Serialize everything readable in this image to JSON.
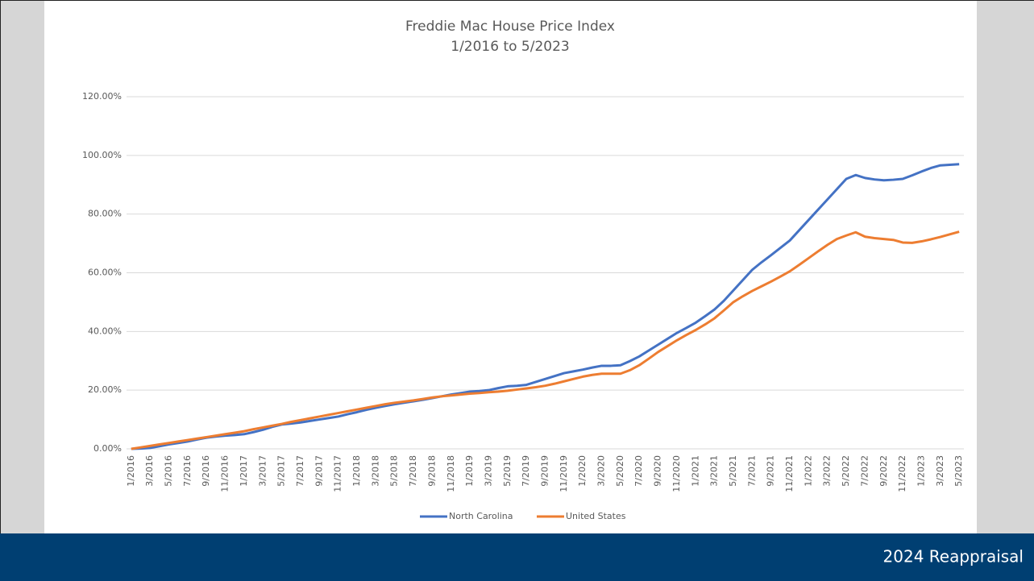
{
  "chart_data": {
    "type": "line",
    "title": "Freddie Mac House Price Index",
    "subtitle": "1/2016 to 5/2023",
    "categories": [
      "1/2016",
      null,
      "3/2016",
      null,
      "5/2016",
      null,
      "7/2016",
      null,
      "9/2016",
      null,
      "11/2016",
      null,
      "1/2017",
      null,
      "3/2017",
      null,
      "5/2017",
      null,
      "7/2017",
      null,
      "9/2017",
      null,
      "11/2017",
      null,
      "1/2018",
      null,
      "3/2018",
      null,
      "5/2018",
      null,
      "7/2018",
      null,
      "9/2018",
      null,
      "11/2018",
      null,
      "1/2019",
      null,
      "3/2019",
      null,
      "5/2019",
      null,
      "7/2019",
      null,
      "9/2019",
      null,
      "11/2019",
      null,
      "1/2020",
      null,
      "3/2020",
      null,
      "5/2020",
      null,
      "7/2020",
      null,
      "9/2020",
      null,
      "11/2020",
      null,
      "1/2021",
      null,
      "3/2021",
      null,
      "5/2021",
      null,
      "7/2021",
      null,
      "9/2021",
      null,
      "11/2021",
      null,
      "1/2022",
      null,
      "3/2022",
      null,
      "5/2022",
      null,
      "7/2022",
      null,
      "9/2022",
      null,
      "11/2022",
      null,
      "1/2023",
      null,
      "3/2023",
      null,
      "5/2023"
    ],
    "series": [
      {
        "name": "North Carolina",
        "color": "#4472c4",
        "values": [
          0,
          0.1,
          0.3,
          0.9,
          1.5,
          2,
          2.5,
          3.2,
          3.8,
          4.2,
          4.5,
          4.7,
          5,
          5.7,
          6.5,
          7.5,
          8.3,
          8.6,
          9,
          9.5,
          10,
          10.5,
          11,
          11.8,
          12.5,
          13.3,
          14,
          14.6,
          15.2,
          15.7,
          16.2,
          16.7,
          17.3,
          17.9,
          18.5,
          19,
          19.5,
          19.7,
          20,
          20.7,
          21.3,
          21.5,
          21.8,
          22.8,
          23.8,
          24.8,
          25.8,
          26.4,
          27,
          27.7,
          28.3,
          28.3,
          28.5,
          29.9,
          31.5,
          33.5,
          35.5,
          37.5,
          39.5,
          41.2,
          43,
          45.2,
          47.5,
          50.5,
          54,
          57.5,
          61,
          63.6,
          66,
          68.5,
          71,
          74.5,
          78,
          81.5,
          85,
          88.5,
          92,
          93.3,
          92.3,
          91.8,
          91.5,
          91.7,
          92,
          93.2,
          94.5,
          95.7,
          96.6,
          96.8,
          97
        ]
      },
      {
        "name": "United States",
        "color": "#ed7d31",
        "values": [
          0,
          0.5,
          1,
          1.5,
          2,
          2.5,
          3,
          3.5,
          4,
          4.5,
          5,
          5.5,
          6,
          6.7,
          7.3,
          7.9,
          8.5,
          9.2,
          9.8,
          10.4,
          11,
          11.6,
          12.2,
          12.8,
          13.4,
          14,
          14.6,
          15.2,
          15.7,
          16.1,
          16.5,
          17,
          17.5,
          17.9,
          18.2,
          18.5,
          18.8,
          19,
          19.3,
          19.5,
          19.8,
          20.2,
          20.6,
          21,
          21.5,
          22.2,
          23,
          23.8,
          24.6,
          25.2,
          25.6,
          25.6,
          25.6,
          26.8,
          28.5,
          30.7,
          33,
          35,
          37,
          38.8,
          40.5,
          42.4,
          44.5,
          47.2,
          50,
          52,
          53.8,
          55.4,
          57,
          58.7,
          60.5,
          62.7,
          65,
          67.3,
          69.5,
          71.5,
          72.7,
          73.8,
          72.3,
          71.8,
          71.5,
          71.2,
          70.3,
          70.2,
          70.7,
          71.4,
          72.2,
          73.1,
          74
        ]
      }
    ],
    "ylim": [
      0,
      120
    ],
    "yticks": [
      {
        "value": 0,
        "label": "0.00%"
      },
      {
        "value": 20,
        "label": "20.00%"
      },
      {
        "value": 40,
        "label": "40.00%"
      },
      {
        "value": 60,
        "label": "60.00%"
      },
      {
        "value": 80,
        "label": "80.00%"
      },
      {
        "value": 100,
        "label": "100.00%"
      },
      {
        "value": 120,
        "label": "120.00%"
      }
    ],
    "grid": true,
    "legend": "bottom"
  },
  "footer": {
    "text": "2024 Reappraisal"
  }
}
